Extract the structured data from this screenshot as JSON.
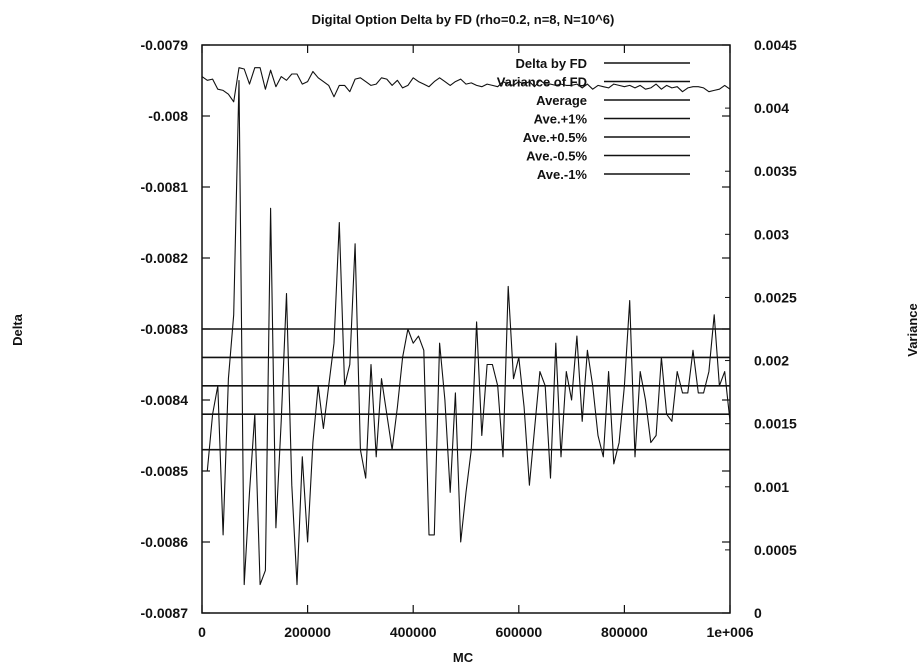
{
  "chart_data": {
    "type": "line",
    "title": "Digital Option Delta by FD (rho=0.2, n=8, N=10^6)",
    "xlabel": "MC",
    "ylabel": "Delta",
    "y2label": "Variance",
    "xlim": [
      0,
      1000000
    ],
    "ylim": [
      -0.0087,
      -0.0079
    ],
    "y2lim": [
      0,
      0.0045
    ],
    "xticks": [
      "0",
      "200000",
      "400000",
      "600000",
      "800000",
      "1e+006"
    ],
    "yticks": [
      "-0.0079",
      "-0.008",
      "-0.0081",
      "-0.0082",
      "-0.0083",
      "-0.0084",
      "-0.0085",
      "-0.0086",
      "-0.0087"
    ],
    "y2ticks": [
      "0.0045",
      "0.004",
      "0.0035",
      "0.003",
      "0.0025",
      "0.002",
      "0.0015",
      "0.001",
      "0.0005",
      "0"
    ],
    "grid": false,
    "legend_position": "top-right",
    "legend": [
      "Delta by FD",
      "Variance of FD",
      "Average",
      "Ave.+1%",
      "Ave.+0.5%",
      "Ave.-0.5%",
      "Ave.-1%"
    ],
    "color": "#111111",
    "series": [
      {
        "name": "Delta by FD",
        "axis": "left",
        "x": [
          0,
          10000,
          20000,
          30000,
          40000,
          50000,
          60000,
          70000,
          80000,
          90000,
          100000,
          110000,
          120000,
          130000,
          140000,
          150000,
          160000,
          170000,
          180000,
          190000,
          200000,
          210000,
          220000,
          230000,
          240000,
          250000,
          260000,
          270000,
          280000,
          290000,
          300000,
          310000,
          320000,
          330000,
          340000,
          350000,
          360000,
          370000,
          380000,
          390000,
          400000,
          410000,
          420000,
          430000,
          440000,
          450000,
          460000,
          470000,
          480000,
          490000,
          500000,
          510000,
          520000,
          530000,
          540000,
          550000,
          560000,
          570000,
          580000,
          590000,
          600000,
          610000,
          620000,
          630000,
          640000,
          650000,
          660000,
          670000,
          680000,
          690000,
          700000,
          710000,
          720000,
          730000,
          740000,
          750000,
          760000,
          770000,
          780000,
          790000,
          800000,
          810000,
          820000,
          830000,
          840000,
          850000,
          860000,
          870000,
          880000,
          890000,
          900000,
          910000,
          920000,
          930000,
          940000,
          950000,
          960000,
          970000,
          980000,
          990000,
          1000000
        ],
        "y": [
          -0.0085,
          -0.0085,
          -0.00842,
          -0.00838,
          -0.00859,
          -0.00837,
          -0.00828,
          -0.00795,
          -0.00866,
          -0.00853,
          -0.00842,
          -0.00866,
          -0.00864,
          -0.00813,
          -0.00858,
          -0.00843,
          -0.00825,
          -0.00852,
          -0.00866,
          -0.00848,
          -0.0086,
          -0.00846,
          -0.00838,
          -0.00844,
          -0.00838,
          -0.00832,
          -0.00815,
          -0.00838,
          -0.00835,
          -0.00818,
          -0.00847,
          -0.00851,
          -0.00835,
          -0.00848,
          -0.00837,
          -0.00842,
          -0.00847,
          -0.00841,
          -0.00834,
          -0.0083,
          -0.00832,
          -0.00831,
          -0.00833,
          -0.00859,
          -0.00859,
          -0.00832,
          -0.0084,
          -0.00853,
          -0.00839,
          -0.0086,
          -0.00853,
          -0.00847,
          -0.00829,
          -0.00845,
          -0.00835,
          -0.00835,
          -0.00838,
          -0.00848,
          -0.00824,
          -0.00837,
          -0.00834,
          -0.00841,
          -0.00852,
          -0.00844,
          -0.00836,
          -0.00838,
          -0.00851,
          -0.00832,
          -0.00848,
          -0.00836,
          -0.0084,
          -0.00831,
          -0.00843,
          -0.00833,
          -0.00838,
          -0.00845,
          -0.00848,
          -0.00836,
          -0.00849,
          -0.00846,
          -0.00838,
          -0.00826,
          -0.00848,
          -0.00836,
          -0.0084,
          -0.00846,
          -0.00845,
          -0.00834,
          -0.00842,
          -0.00843,
          -0.00836,
          -0.00839,
          -0.00839,
          -0.00833,
          -0.00839,
          -0.00839,
          -0.00836,
          -0.00828,
          -0.00838,
          -0.00836,
          -0.00843
        ]
      },
      {
        "name": "Variance of FD",
        "axis": "right",
        "x": [
          0,
          10000,
          20000,
          30000,
          40000,
          50000,
          60000,
          70000,
          80000,
          90000,
          100000,
          110000,
          120000,
          130000,
          140000,
          150000,
          160000,
          170000,
          180000,
          190000,
          200000,
          210000,
          220000,
          230000,
          240000,
          250000,
          260000,
          270000,
          280000,
          290000,
          300000,
          310000,
          320000,
          330000,
          340000,
          350000,
          360000,
          370000,
          380000,
          390000,
          400000,
          410000,
          420000,
          430000,
          440000,
          450000,
          460000,
          470000,
          480000,
          490000,
          500000,
          510000,
          520000,
          530000,
          540000,
          550000,
          560000,
          570000,
          580000,
          590000,
          600000,
          610000,
          620000,
          630000,
          640000,
          650000,
          660000,
          670000,
          680000,
          690000,
          700000,
          710000,
          720000,
          730000,
          740000,
          750000,
          760000,
          770000,
          780000,
          790000,
          800000,
          810000,
          820000,
          830000,
          840000,
          850000,
          860000,
          870000,
          880000,
          890000,
          900000,
          910000,
          920000,
          930000,
          940000,
          950000,
          960000,
          970000,
          980000,
          990000,
          1000000
        ],
        "y": [
          0.00425,
          0.00422,
          0.00423,
          0.00415,
          0.00414,
          0.00411,
          0.00405,
          0.00432,
          0.00431,
          0.00419,
          0.00432,
          0.00432,
          0.00415,
          0.0043,
          0.00417,
          0.00425,
          0.00422,
          0.00427,
          0.00427,
          0.00419,
          0.00421,
          0.00429,
          0.00424,
          0.00421,
          0.00418,
          0.00409,
          0.00418,
          0.00418,
          0.00413,
          0.00423,
          0.00424,
          0.00421,
          0.00418,
          0.00419,
          0.00424,
          0.00423,
          0.00418,
          0.00422,
          0.00416,
          0.00418,
          0.00424,
          0.00421,
          0.00419,
          0.00417,
          0.00421,
          0.00424,
          0.00421,
          0.00418,
          0.00421,
          0.00423,
          0.00419,
          0.0042,
          0.00418,
          0.00417,
          0.00419,
          0.00418,
          0.00417,
          0.00421,
          0.00419,
          0.00418,
          0.00421,
          0.00419,
          0.00421,
          0.00417,
          0.00422,
          0.00419,
          0.00419,
          0.00418,
          0.00419,
          0.00418,
          0.00418,
          0.00419,
          0.00416,
          0.00419,
          0.00415,
          0.00418,
          0.00417,
          0.00416,
          0.00419,
          0.00418,
          0.00417,
          0.00418,
          0.00416,
          0.00418,
          0.00415,
          0.00416,
          0.00419,
          0.00415,
          0.00418,
          0.00416,
          0.00417,
          0.00413,
          0.00416,
          0.00417,
          0.00417,
          0.00416,
          0.00413,
          0.00414,
          0.00415,
          0.00418,
          0.00415
        ]
      },
      {
        "name": "Average",
        "axis": "left",
        "x": [
          0,
          1000000
        ],
        "y": [
          -0.00838,
          -0.00838
        ]
      },
      {
        "name": "Ave.+1%",
        "axis": "left",
        "x": [
          0,
          1000000
        ],
        "y": [
          -0.0083,
          -0.0083
        ]
      },
      {
        "name": "Ave.+0.5%",
        "axis": "left",
        "x": [
          0,
          1000000
        ],
        "y": [
          -0.00834,
          -0.00834
        ]
      },
      {
        "name": "Ave.-0.5%",
        "axis": "left",
        "x": [
          0,
          1000000
        ],
        "y": [
          -0.00842,
          -0.00842
        ]
      },
      {
        "name": "Ave.-1%",
        "axis": "left",
        "x": [
          0,
          1000000
        ],
        "y": [
          -0.00847,
          -0.00847
        ]
      }
    ]
  }
}
